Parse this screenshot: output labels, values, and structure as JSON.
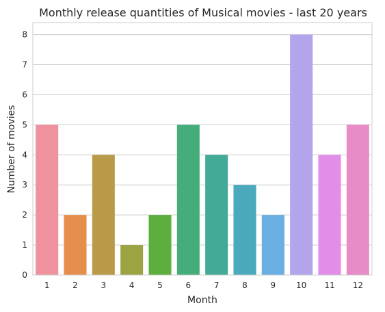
{
  "chart_data": {
    "type": "bar",
    "title": "Monthly release quantities of Musical movies - last 20 years",
    "xlabel": "Month",
    "ylabel": "Number of movies",
    "categories": [
      "1",
      "2",
      "3",
      "4",
      "5",
      "6",
      "7",
      "8",
      "9",
      "10",
      "11",
      "12"
    ],
    "values": [
      5,
      2,
      4,
      1,
      2,
      5,
      4,
      3,
      2,
      8,
      4,
      5
    ],
    "colors": [
      "#ef929f",
      "#e68f4d",
      "#b89a48",
      "#9ba342",
      "#5cae3e",
      "#44ad79",
      "#44aa98",
      "#4aa9ba",
      "#6aaee2",
      "#b4a4ec",
      "#e28ee8",
      "#e88cc8"
    ],
    "ylim": [
      0,
      8.4
    ],
    "yticks": [
      "0",
      "1",
      "2",
      "3",
      "4",
      "5",
      "6",
      "7",
      "8"
    ],
    "grid": "y",
    "legend": "none"
  }
}
